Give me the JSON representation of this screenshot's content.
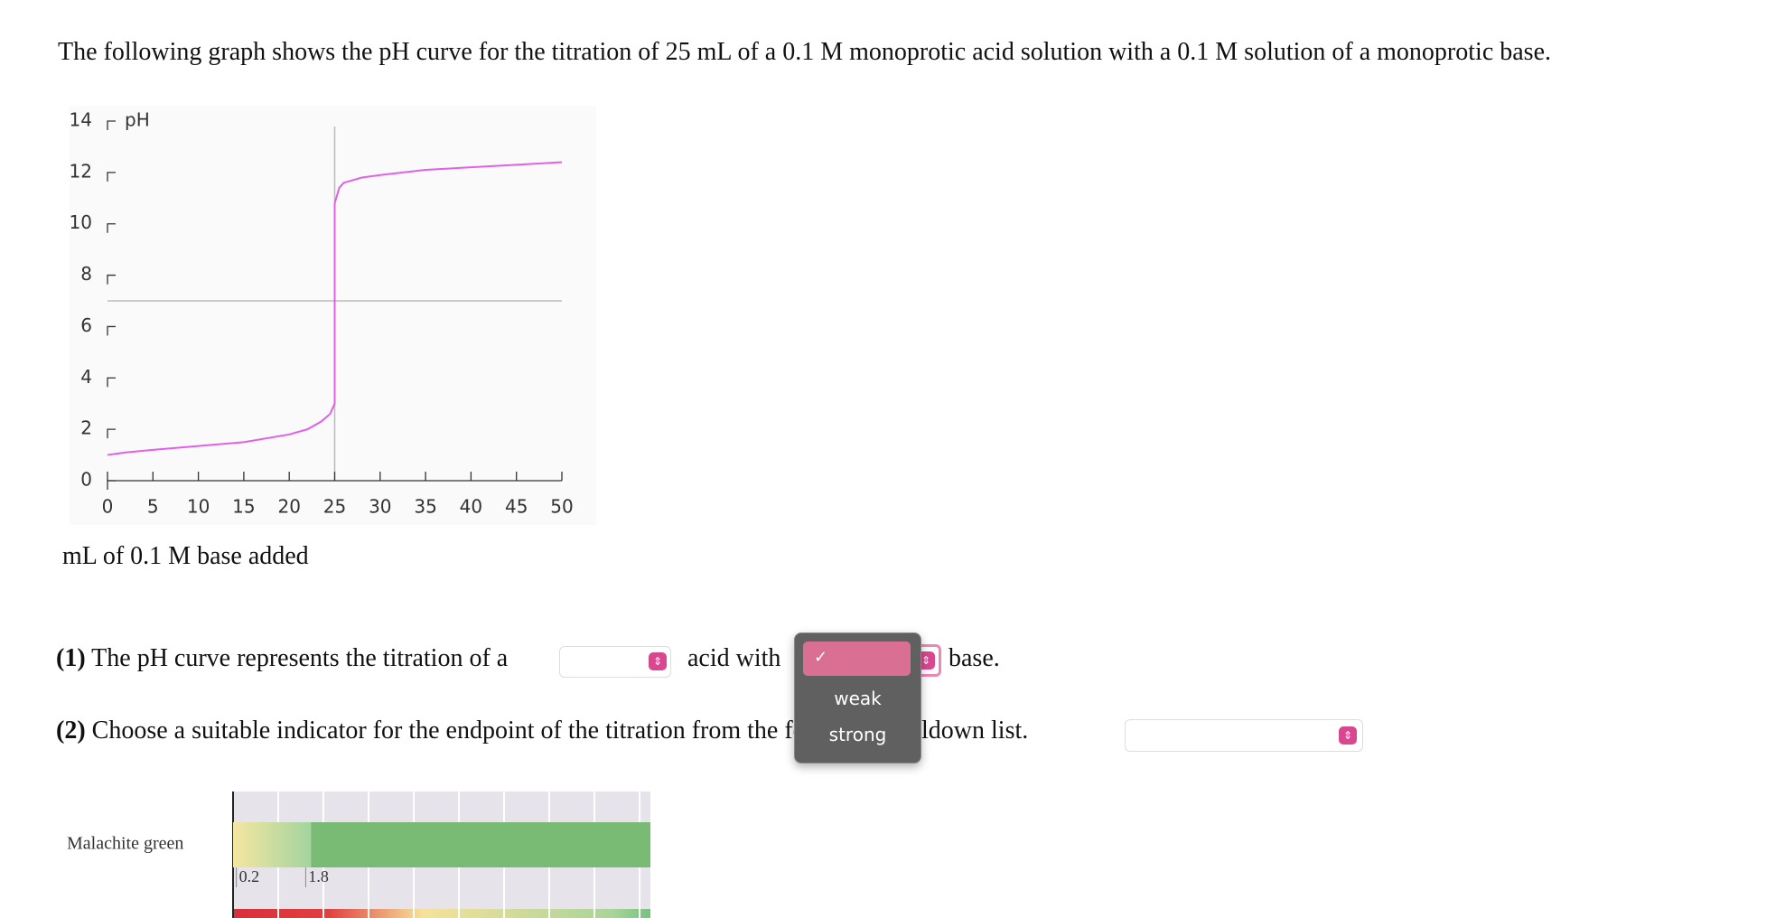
{
  "question": {
    "intro": "The following graph shows the pH curve for the titration of 25 mL of a 0.1 M monoprotic acid solution with a 0.1 M solution of a monoprotic base.",
    "q1": {
      "number": "(1)",
      "before": "The pH curve represents the titration of a",
      "middle": "acid with",
      "after": "base."
    },
    "q2": {
      "number": "(2)",
      "text": "Choose a suitable indicator for the endpoint of the titration from the following pulldown list."
    },
    "dropdown_options": [
      "weak",
      "strong"
    ]
  },
  "chart_data": {
    "type": "line",
    "y_label": "pH",
    "x_label": "mL of 0.1 M base added",
    "series": [
      {
        "name": "pH",
        "color": "#e060e8",
        "x": [
          0,
          2,
          5,
          10,
          15,
          20,
          22,
          23.5,
          24.5,
          25,
          25,
          25.5,
          26,
          28,
          30,
          35,
          40,
          45,
          50
        ],
        "values": [
          1.0,
          1.1,
          1.2,
          1.35,
          1.5,
          1.8,
          2.0,
          2.3,
          2.6,
          3.0,
          10.8,
          11.4,
          11.6,
          11.8,
          11.9,
          12.1,
          12.2,
          12.3,
          12.4
        ]
      }
    ],
    "equivalence_x": 25,
    "equivalence_y": 7,
    "xlim": [
      0,
      50
    ],
    "ylim": [
      0,
      14
    ],
    "xticks": [
      0,
      5,
      10,
      15,
      20,
      25,
      30,
      35,
      40,
      45,
      50
    ],
    "yticks": [
      0,
      2,
      4,
      6,
      8,
      10,
      12,
      14
    ]
  },
  "indicators": [
    {
      "name": "Malachite green",
      "range": [
        0.2,
        1.8
      ]
    }
  ]
}
